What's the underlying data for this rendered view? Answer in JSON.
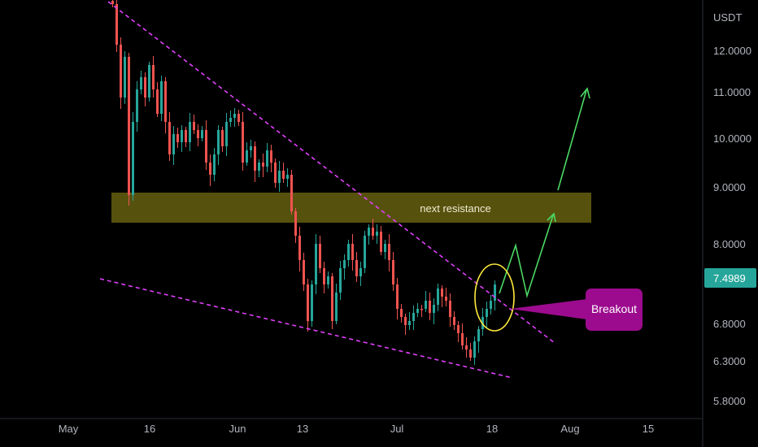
{
  "chart_data": {
    "type": "candlestick",
    "y_unit": "USDT",
    "x_tick_labels": [
      "May",
      "16",
      "Jun",
      "13",
      "Jul",
      "18",
      "Aug",
      "15"
    ],
    "y_tick_labels": [
      "12.0000",
      "11.0000",
      "10.0000",
      "9.0000",
      "8.0000",
      "6.8000",
      "6.3000",
      "5.8000"
    ],
    "last_price": "7.4989",
    "annotations": {
      "resistance_zone": {
        "label": "next resistance",
        "price_range": [
          8.38,
          8.88
        ]
      },
      "breakout_callout": {
        "label": "Breakout"
      }
    },
    "colors": {
      "up": "#26a69a",
      "down": "#ef5350",
      "trendline": "#e040fb",
      "zone": "#605a10",
      "projection": "#4cd964",
      "breakout_circle": "#ffeb3b",
      "callout": "#9c0b8e",
      "last_price_badge": "#26a69a"
    }
  }
}
